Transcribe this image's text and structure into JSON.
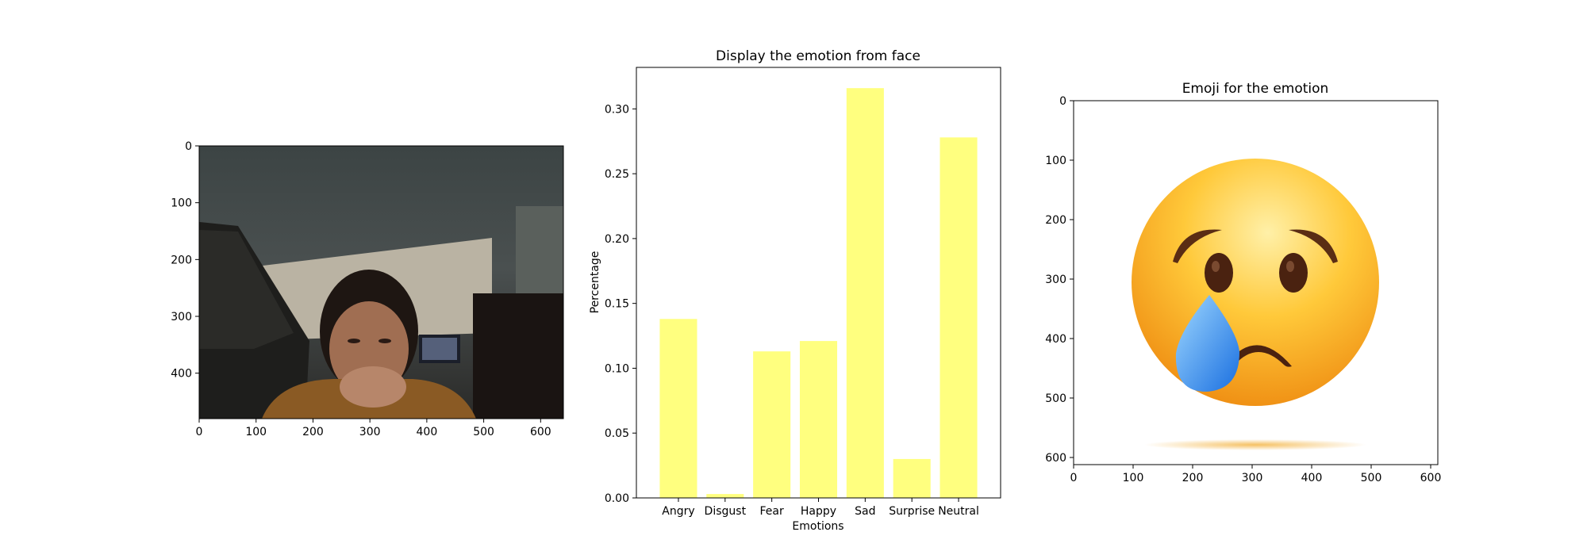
{
  "panels": {
    "photo": {
      "x_ticks": [
        "0",
        "100",
        "200",
        "300",
        "400",
        "500",
        "600"
      ],
      "y_ticks": [
        "0",
        "100",
        "200",
        "300",
        "400"
      ],
      "x_range": [
        0,
        640
      ],
      "y_range": [
        0,
        480
      ],
      "image_semantic": "webcam-photo-of-person-covering-mouth"
    },
    "emoji": {
      "title": "Emoji for the emotion",
      "x_ticks": [
        "0",
        "100",
        "200",
        "300",
        "400",
        "500",
        "600"
      ],
      "y_ticks": [
        "0",
        "100",
        "200",
        "300",
        "400",
        "500",
        "600"
      ],
      "x_range": [
        0,
        612
      ],
      "y_range": [
        0,
        612
      ],
      "image_semantic": "sad-crying-face-emoji"
    }
  },
  "chart_data": {
    "type": "bar",
    "title": "Display the emotion from face",
    "xlabel": "Emotions",
    "ylabel": "Percentage",
    "categories": [
      "Angry",
      "Disgust",
      "Fear",
      "Happy",
      "Sad",
      "Surprise",
      "Neutral"
    ],
    "values": [
      0.138,
      0.003,
      0.113,
      0.121,
      0.316,
      0.03,
      0.278
    ],
    "ylim": [
      0,
      0.332
    ],
    "y_ticks": [
      "0.00",
      "0.05",
      "0.10",
      "0.15",
      "0.20",
      "0.25",
      "0.30"
    ],
    "bar_color": "#ffff7f",
    "grid": false
  },
  "colors": {
    "bar_fill": "#ffff7f",
    "axis": "#000000",
    "emoji_face_light": "#ffe27a",
    "emoji_face_dark": "#f29a1a",
    "tear": "#4aa0f0"
  }
}
